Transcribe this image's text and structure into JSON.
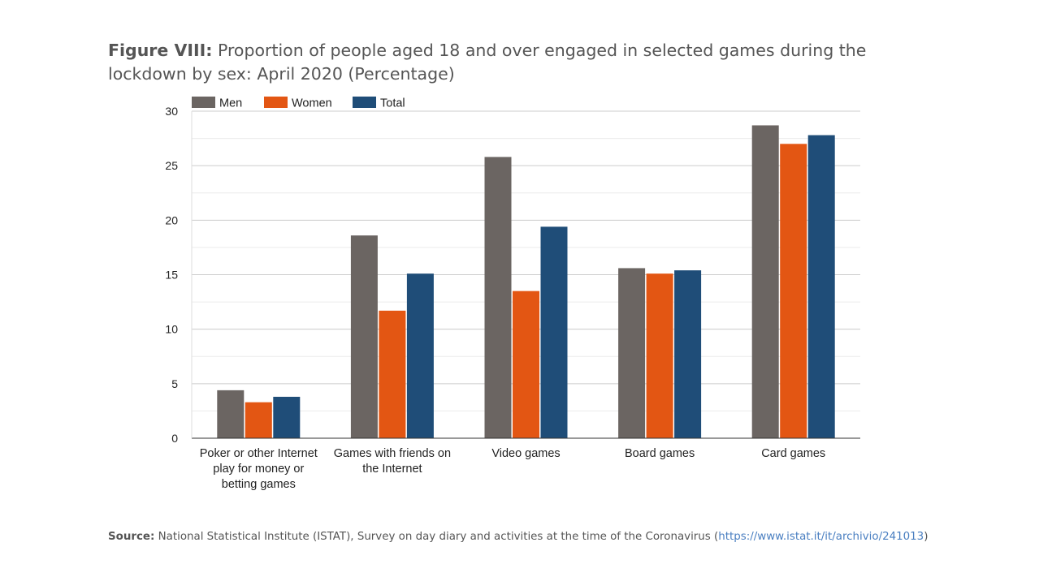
{
  "title": {
    "prefix": "Figure VIII:",
    "text": "Proportion of people aged 18 and over engaged in selected games during the lockdown by sex: April 2020 (Percentage)"
  },
  "source": {
    "label": "Source:",
    "text": "National Statistical Institute (ISTAT), Survey on day diary and activities at the time of the Coronavirus (",
    "link": "https://www.istat.it/it/archivio/241013",
    "suffix": ")"
  },
  "chart_data": {
    "type": "bar",
    "categories": [
      [
        "Poker or other Internet",
        "play for money or",
        "betting games"
      ],
      [
        "Games with friends on",
        "the Internet"
      ],
      [
        "Video games"
      ],
      [
        "Board games"
      ],
      [
        "Card games"
      ]
    ],
    "series": [
      {
        "name": "Men",
        "color": "#6b6562",
        "values": [
          4.4,
          18.6,
          25.8,
          15.6,
          28.7
        ]
      },
      {
        "name": "Women",
        "color": "#e35613",
        "values": [
          3.3,
          11.7,
          13.5,
          15.1,
          27.0
        ]
      },
      {
        "name": "Total",
        "color": "#1f4d78",
        "values": [
          3.8,
          15.1,
          19.4,
          15.4,
          27.8
        ]
      }
    ],
    "ylim": [
      0,
      30
    ],
    "yticks": [
      "0",
      "5",
      "10",
      "15",
      "20",
      "25",
      "30"
    ],
    "grid": true,
    "legend": "top-left",
    "xlabel": "",
    "ylabel": ""
  }
}
